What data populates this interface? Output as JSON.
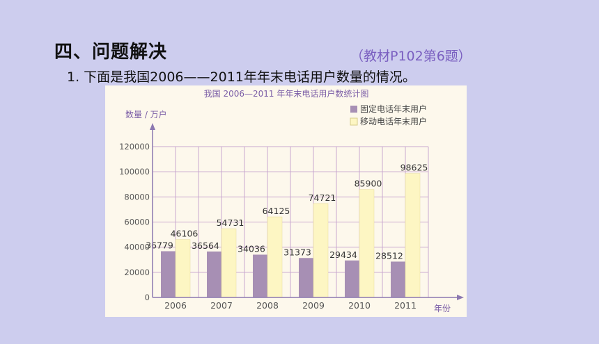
{
  "section": {
    "title": "四、问题解决",
    "source": "（教材P102第6题）"
  },
  "question": {
    "text": "1.  下面是我国2006——2011年年末电话用户数量的情况。"
  },
  "chart_data": {
    "type": "bar",
    "title": "我国 2006—2011 年年末电话用户数统计图",
    "ylabel": "数量 / 万户",
    "xlabel": "年份",
    "categories": [
      "2006",
      "2007",
      "2008",
      "2009",
      "2010",
      "2011"
    ],
    "series": [
      {
        "name": "固定电话年末用户",
        "values": [
          36779,
          36564,
          34036,
          31373,
          29434,
          28512
        ],
        "color": "#a78fb4"
      },
      {
        "name": "移动电话年末用户",
        "values": [
          46106,
          54731,
          64125,
          74721,
          85900,
          98625
        ],
        "color": "#fdf6c3"
      }
    ],
    "ylim": [
      0,
      120000
    ],
    "yticks": [
      0,
      20000,
      40000,
      60000,
      80000,
      100000,
      120000
    ],
    "grid": true,
    "legend": "top-right",
    "colors": {
      "axis": "#8c78b0",
      "grid": "#c9a7cf",
      "text": "#555555",
      "title": "#7a5ca6"
    }
  }
}
